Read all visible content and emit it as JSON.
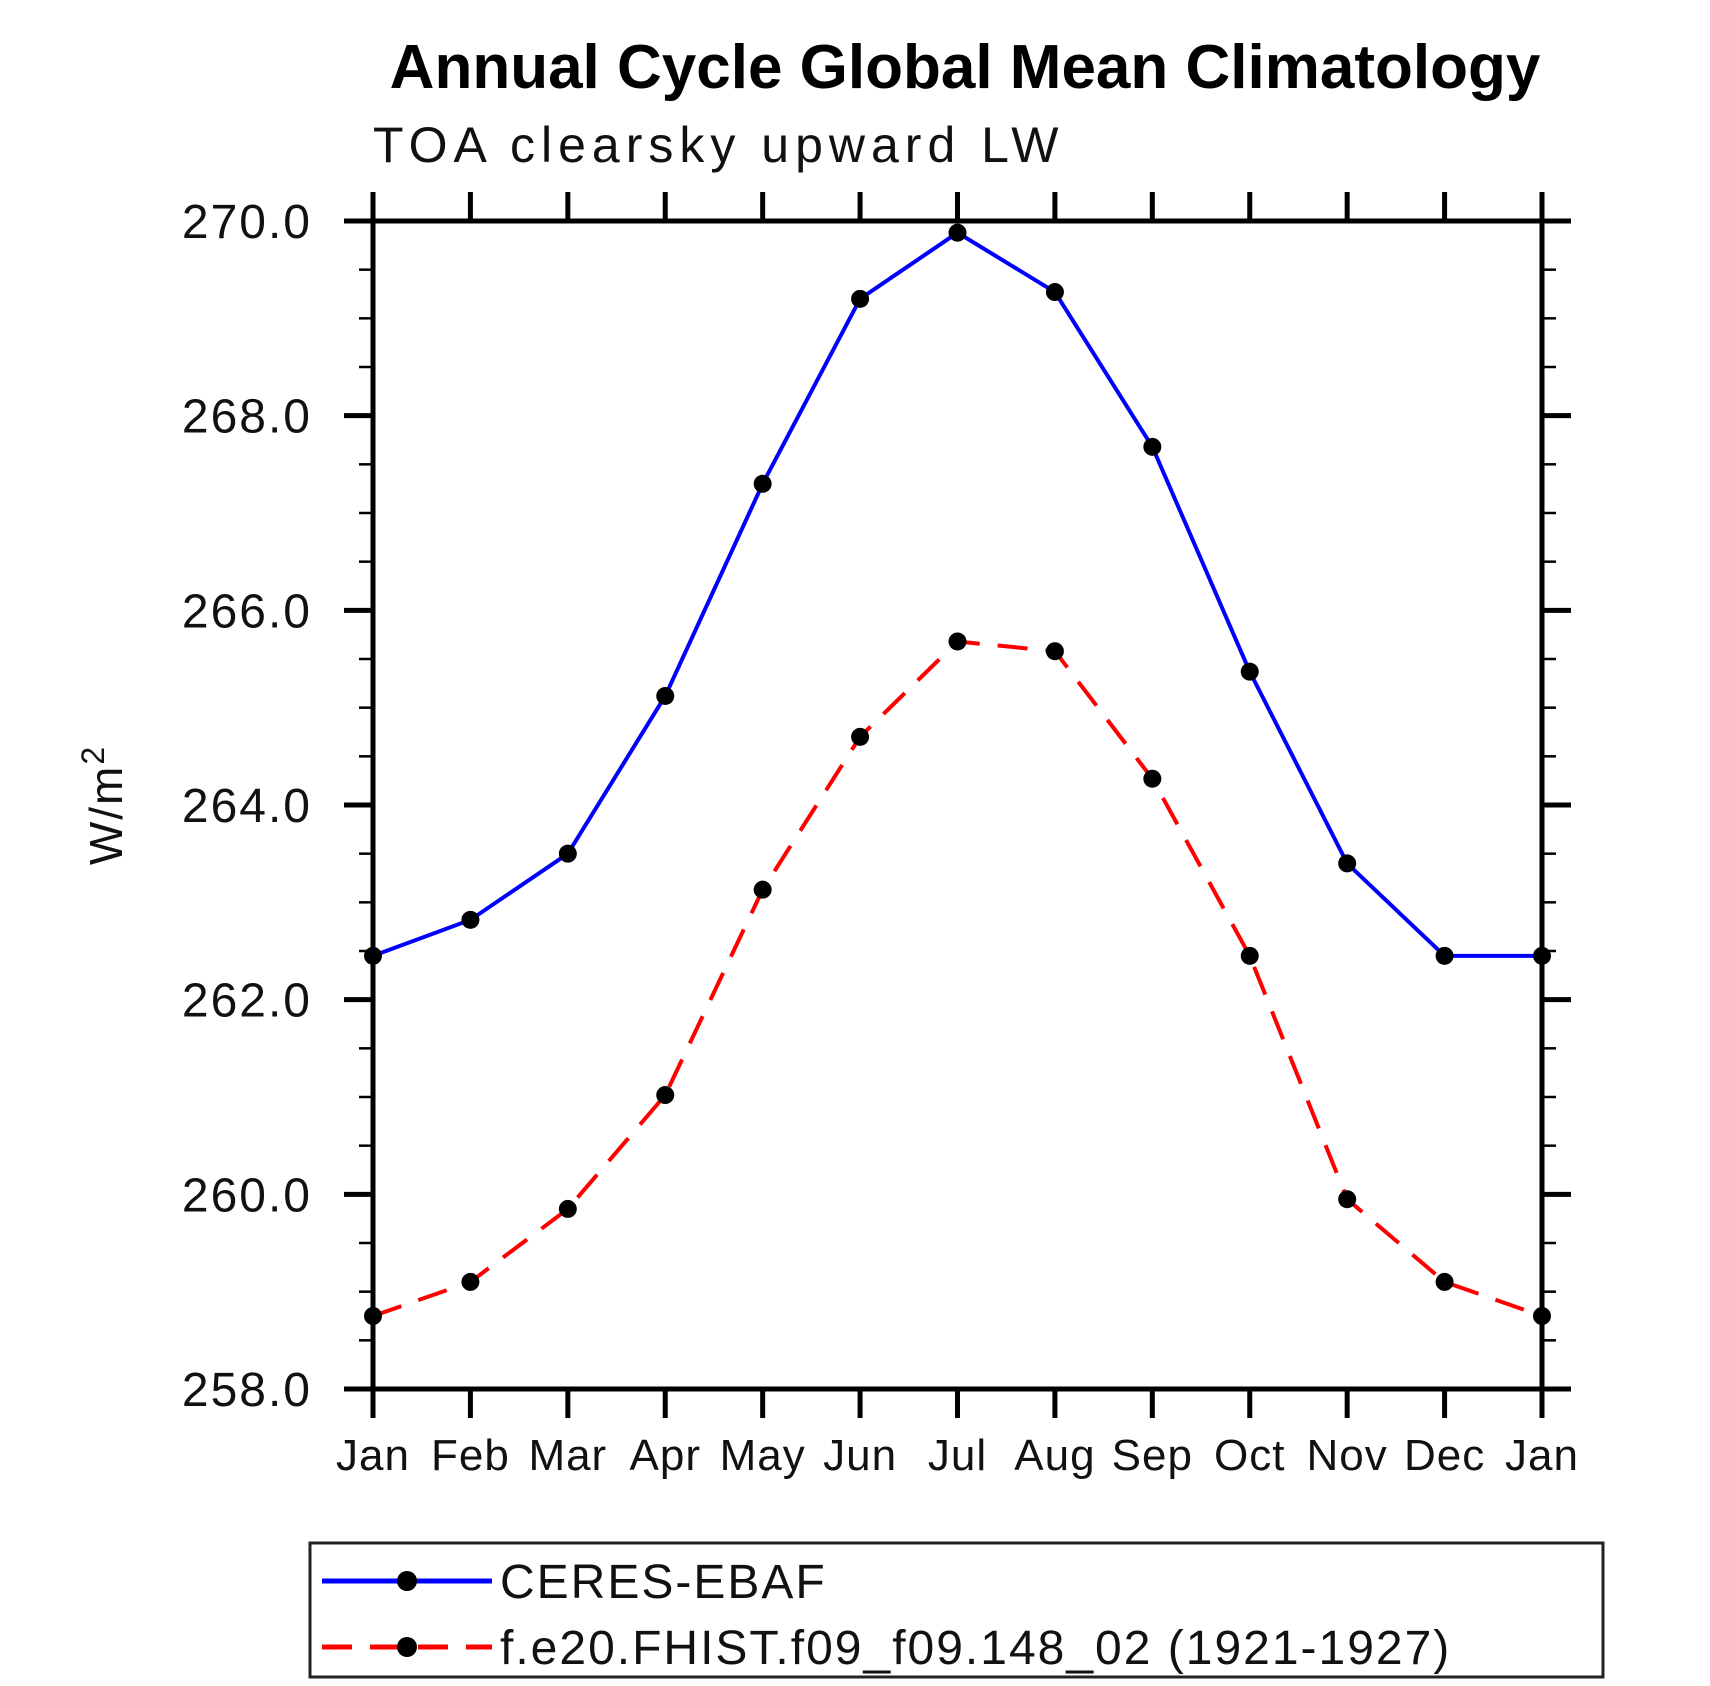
{
  "chart_data": {
    "type": "line",
    "title": "Annual Cycle Global Mean Climatology",
    "subtitle": "TOA clearsky upward LW",
    "ylabel": {
      "base": "W/m",
      "sup": "2"
    },
    "xlabel": "",
    "categories": [
      "Jan",
      "Feb",
      "Mar",
      "Apr",
      "May",
      "Jun",
      "Jul",
      "Aug",
      "Sep",
      "Oct",
      "Nov",
      "Dec",
      "Jan"
    ],
    "ylim": [
      258.0,
      270.0
    ],
    "ytick_major_values": [
      270.0,
      268.0,
      266.0,
      264.0,
      262.0,
      260.0,
      258.0
    ],
    "ytick_major_labels": [
      "270.0",
      "268.0",
      "266.0",
      "264.0",
      "262.0",
      "260.0",
      "258.0"
    ],
    "ytick_minor_step": 0.5,
    "grid": false,
    "legend_position": "bottom-left",
    "marker": "filled-circle",
    "marker_color": "#000000",
    "frame_color": "#000000",
    "series": [
      {
        "name": "CERES-EBAF",
        "color": "#0000ff",
        "style": "solid",
        "values": [
          262.45,
          262.82,
          263.5,
          265.12,
          267.3,
          269.2,
          269.88,
          269.27,
          267.68,
          265.37,
          263.4,
          262.45,
          262.45
        ]
      },
      {
        "name": "f.e20.FHIST.f09_f09.148_02 (1921-1927)",
        "color": "#ff0000",
        "style": "dashed",
        "values": [
          258.75,
          259.1,
          259.85,
          261.02,
          263.13,
          264.7,
          265.68,
          265.58,
          264.27,
          262.45,
          259.95,
          259.1,
          258.75
        ]
      }
    ]
  }
}
